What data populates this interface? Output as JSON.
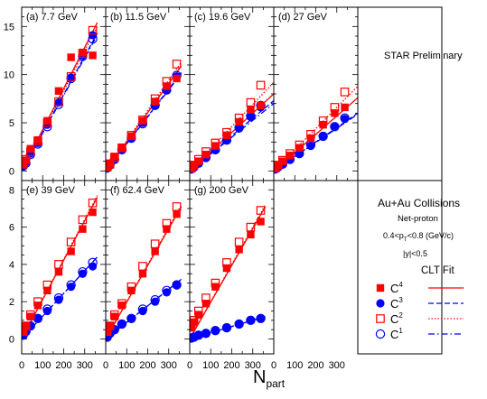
{
  "figure": {
    "x_axis_label_main": "N",
    "x_axis_label_sub": "part",
    "annotation": "STAR Preliminary",
    "legend": {
      "system": "Au+Au Collisions",
      "species": "Net-proton",
      "pt_cut": {
        "prefix": "0.4<p",
        "sub": "T",
        "suffix": "<0.8 (GeV/c)"
      },
      "y_cut": "|y|<0.5",
      "fit_title": "CLT Fit",
      "entries": [
        {
          "main": "C",
          "sub": "4",
          "marker": "filled-square",
          "line": "solid"
        },
        {
          "main": "C",
          "sub": "3",
          "marker": "filled-circle",
          "line": "dashed"
        },
        {
          "main": "C",
          "sub": "2",
          "marker": "open-square",
          "line": "dotted"
        },
        {
          "main": "C",
          "sub": "1",
          "marker": "open-circle",
          "line": "dashdot"
        }
      ]
    },
    "colors": {
      "C4": "#ff0000",
      "C3": "#0000ff",
      "C2": "#ff0000",
      "C1": "#0000ff"
    },
    "x_ticks": [
      "0",
      "100",
      "200",
      "300"
    ],
    "row1_y_ticks": [
      "0",
      "5",
      "10",
      "15"
    ],
    "row2_y_ticks": [
      "0",
      "2",
      "4",
      "6",
      "8"
    ]
  },
  "chart_data": [
    {
      "type": "scatter",
      "title": "(a) 7.7 GeV",
      "xlabel": "Npart",
      "xlim": [
        0,
        400
      ],
      "ylim": [
        -1,
        17
      ],
      "x": [
        7,
        20,
        42,
        77,
        122,
        176,
        235,
        290,
        338
      ],
      "series": [
        {
          "name": "C4",
          "values": [
            0.7,
            1.1,
            2.3,
            3.2,
            5.2,
            8.3,
            11.8,
            12.3,
            12.0
          ],
          "fit": [
            [
              0,
              0
            ],
            [
              360,
              15.4
            ]
          ]
        },
        {
          "name": "C3",
          "values": [
            0.5,
            0.9,
            1.8,
            2.9,
            4.8,
            7.1,
            9.7,
            12.0,
            14.1
          ],
          "fit": [
            [
              0,
              0
            ],
            [
              360,
              14.3
            ]
          ]
        },
        {
          "name": "C2",
          "values": [
            0.7,
            1.2,
            2.0,
            3.1,
            5.0,
            7.2,
            9.8,
            12.2,
            14.6
          ],
          "fit": [
            [
              0,
              0
            ],
            [
              360,
              15.0
            ]
          ]
        },
        {
          "name": "C1",
          "values": [
            0.5,
            0.8,
            1.7,
            2.8,
            4.6,
            6.9,
            9.6,
            11.9,
            13.7
          ],
          "fit": [
            [
              0,
              0
            ],
            [
              360,
              14.1
            ]
          ]
        }
      ]
    },
    {
      "type": "scatter",
      "title": "(b) 11.5 GeV",
      "xlabel": "Npart",
      "xlim": [
        0,
        400
      ],
      "ylim": [
        -1,
        17
      ],
      "x": [
        7,
        20,
        42,
        77,
        122,
        176,
        235,
        290,
        338
      ],
      "series": [
        {
          "name": "C4",
          "values": [
            0.4,
            0.8,
            1.5,
            2.4,
            3.6,
            5.2,
            7.2,
            8.8,
            9.6
          ],
          "fit": [
            [
              0,
              0
            ],
            [
              360,
              10.9
            ]
          ]
        },
        {
          "name": "C3",
          "values": [
            0.3,
            0.6,
            1.2,
            2.2,
            3.4,
            5.0,
            6.8,
            8.4,
            9.8
          ],
          "fit": [
            [
              0,
              0
            ],
            [
              360,
              10.2
            ]
          ]
        },
        {
          "name": "C2",
          "values": [
            0.4,
            0.7,
            1.4,
            2.4,
            3.7,
            5.3,
            7.5,
            9.3,
            11.1
          ],
          "fit": [
            [
              0,
              0
            ],
            [
              360,
              11.3
            ]
          ]
        },
        {
          "name": "C1",
          "values": [
            0.3,
            0.6,
            1.2,
            2.2,
            3.4,
            4.9,
            6.8,
            8.4,
            9.9
          ],
          "fit": [
            [
              0,
              0
            ],
            [
              360,
              10.1
            ]
          ]
        }
      ]
    },
    {
      "type": "scatter",
      "title": "(c) 19.6 GeV",
      "xlabel": "Npart",
      "xlim": [
        0,
        400
      ],
      "ylim": [
        -1,
        17
      ],
      "x": [
        7,
        20,
        42,
        77,
        122,
        176,
        235,
        290,
        338
      ],
      "series": [
        {
          "name": "C4",
          "values": [
            0.3,
            0.6,
            1.0,
            1.7,
            2.6,
            3.7,
            5.1,
            6.4,
            6.8
          ],
          "fit": [
            [
              0,
              0
            ],
            [
              400,
              8.0
            ]
          ]
        },
        {
          "name": "C3",
          "values": [
            0.2,
            0.4,
            0.8,
            1.4,
            2.2,
            3.2,
            4.4,
            5.6,
            6.6
          ],
          "fit": [
            [
              0,
              0
            ],
            [
              400,
              7.3
            ]
          ]
        },
        {
          "name": "C2",
          "values": [
            0.3,
            0.6,
            1.2,
            2.0,
            2.9,
            4.0,
            5.5,
            7.1,
            8.9
          ],
          "fit": [
            [
              0,
              0
            ],
            [
              400,
              9.2
            ]
          ]
        },
        {
          "name": "C1",
          "values": [
            0.2,
            0.4,
            0.8,
            1.4,
            2.2,
            3.2,
            4.5,
            5.7,
            6.8
          ],
          "fit": [
            [
              0,
              0
            ],
            [
              400,
              7.0
            ]
          ]
        }
      ]
    },
    {
      "type": "scatter",
      "title": "(d) 27 GeV",
      "xlabel": "Npart",
      "xlim": [
        0,
        400
      ],
      "ylim": [
        -1,
        17
      ],
      "x": [
        7,
        20,
        42,
        77,
        122,
        176,
        235,
        290,
        338
      ],
      "series": [
        {
          "name": "C4",
          "values": [
            0.3,
            0.6,
            1.0,
            1.6,
            2.4,
            3.4,
            4.8,
            6.0,
            6.6
          ],
          "fit": [
            [
              0,
              0
            ],
            [
              400,
              7.6
            ]
          ]
        },
        {
          "name": "C3",
          "values": [
            0.2,
            0.4,
            0.7,
            1.2,
            1.8,
            2.6,
            3.6,
            4.6,
            5.4
          ],
          "fit": [
            [
              0,
              0
            ],
            [
              400,
              6.0
            ]
          ]
        },
        {
          "name": "C2",
          "values": [
            0.3,
            0.6,
            1.1,
            1.8,
            2.7,
            3.8,
            5.2,
            6.6,
            8.2
          ],
          "fit": [
            [
              0,
              0
            ],
            [
              400,
              8.8
            ]
          ]
        },
        {
          "name": "C1",
          "values": [
            0.2,
            0.4,
            0.7,
            1.2,
            1.8,
            2.7,
            3.6,
            4.6,
            5.5
          ],
          "fit": [
            [
              0,
              0
            ],
            [
              400,
              5.9
            ]
          ]
        }
      ]
    },
    {
      "type": "scatter",
      "title": "(e) 39 GeV",
      "xlabel": "Npart",
      "xlim": [
        0,
        400
      ],
      "ylim": [
        -0.8,
        8.5
      ],
      "x": [
        7,
        20,
        42,
        77,
        122,
        176,
        235,
        290,
        338
      ],
      "series": [
        {
          "name": "C4",
          "values": [
            0.4,
            0.7,
            1.2,
            1.8,
            2.6,
            3.6,
            4.7,
            5.9,
            6.8
          ],
          "fit": [
            [
              0,
              0
            ],
            [
              360,
              7.6
            ]
          ]
        },
        {
          "name": "C3",
          "values": [
            0.2,
            0.4,
            0.7,
            1.1,
            1.5,
            2.1,
            2.8,
            3.5,
            3.9
          ],
          "fit": [
            [
              0,
              0
            ],
            [
              360,
              4.4
            ]
          ]
        },
        {
          "name": "C2",
          "values": [
            0.4,
            0.7,
            1.3,
            2.0,
            2.9,
            4.0,
            5.2,
            6.4,
            7.3
          ],
          "fit": [
            [
              0,
              0
            ],
            [
              360,
              7.7
            ]
          ]
        },
        {
          "name": "C1",
          "values": [
            0.2,
            0.4,
            0.7,
            1.1,
            1.6,
            2.2,
            2.9,
            3.6,
            4.1
          ],
          "fit": [
            [
              0,
              0
            ],
            [
              360,
              4.4
            ]
          ]
        }
      ]
    },
    {
      "type": "scatter",
      "title": "(f) 62.4 GeV",
      "xlabel": "Npart",
      "xlim": [
        0,
        400
      ],
      "ylim": [
        -0.8,
        8.5
      ],
      "x": [
        7,
        20,
        42,
        77,
        122,
        176,
        235,
        290,
        338
      ],
      "series": [
        {
          "name": "C4",
          "values": [
            0.4,
            0.7,
            1.2,
            1.8,
            2.6,
            3.5,
            4.7,
            5.9,
            6.7
          ],
          "fit": [
            [
              0,
              0
            ],
            [
              360,
              7.1
            ]
          ]
        },
        {
          "name": "C3",
          "values": [
            0.1,
            0.3,
            0.5,
            0.8,
            1.1,
            1.5,
            2.0,
            2.5,
            2.9
          ],
          "fit": [
            [
              0,
              0
            ],
            [
              360,
              3.2
            ]
          ]
        },
        {
          "name": "C2",
          "values": [
            0.4,
            0.7,
            1.3,
            1.9,
            2.8,
            3.9,
            5.1,
            6.2,
            7.1
          ],
          "fit": [
            [
              0,
              0
            ],
            [
              360,
              7.2
            ]
          ]
        },
        {
          "name": "C1",
          "values": [
            0.1,
            0.3,
            0.5,
            0.8,
            1.1,
            1.6,
            2.1,
            2.6,
            2.9
          ],
          "fit": [
            [
              0,
              0
            ],
            [
              360,
              3.2
            ]
          ]
        }
      ]
    },
    {
      "type": "scatter",
      "title": "(g) 200 GeV",
      "xlabel": "Npart",
      "xlim": [
        0,
        400
      ],
      "ylim": [
        -0.8,
        8.5
      ],
      "x": [
        7,
        20,
        42,
        77,
        122,
        176,
        235,
        290,
        338
      ],
      "series": [
        {
          "name": "C4",
          "values": [
            0.6,
            0.9,
            1.3,
            1.9,
            2.8,
            3.8,
            4.8,
            5.6,
            6.3
          ],
          "fit": [
            [
              0,
              0
            ],
            [
              360,
              7.1
            ]
          ]
        },
        {
          "name": "C3",
          "values": [
            0.05,
            0.1,
            0.2,
            0.3,
            0.45,
            0.6,
            0.8,
            1.0,
            1.1
          ],
          "fit": [
            [
              0,
              0
            ],
            [
              360,
              1.2
            ]
          ]
        },
        {
          "name": "C2",
          "values": [
            0.7,
            1.0,
            1.5,
            2.2,
            3.0,
            4.1,
            5.2,
            6.0,
            6.9
          ],
          "fit": [
            [
              0,
              0
            ],
            [
              360,
              7.2
            ]
          ]
        },
        {
          "name": "C1",
          "values": [
            0.05,
            0.1,
            0.2,
            0.3,
            0.45,
            0.6,
            0.8,
            1.0,
            1.1
          ],
          "fit": [
            [
              0,
              0
            ],
            [
              360,
              1.2
            ]
          ]
        }
      ]
    }
  ]
}
